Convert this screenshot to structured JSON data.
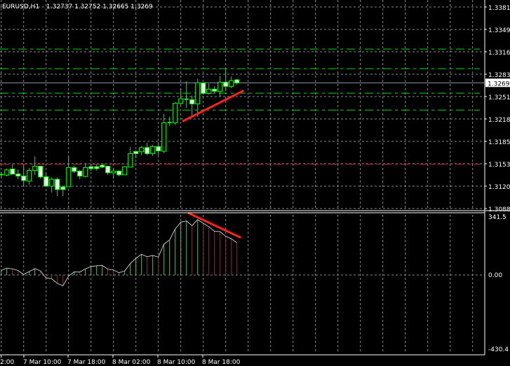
{
  "header": {
    "symbol": "EURUSD,H1",
    "ohlc": "1.32737 1.32752 1.32665 1.3269"
  },
  "colors": {
    "background": "#000000",
    "grid": "#7f8c99",
    "candle_outline": "#00ff00",
    "bear_body": "#ffffff",
    "bull_body": "#000000",
    "level_line": "#00dd00",
    "support_line": "#dd2222",
    "trendline": "#ff2020",
    "bid_line": "#8899aa",
    "hist_up": "#00ff00",
    "hist_down": "#ff0000",
    "indicator_line": "#c0c0c0"
  },
  "chart_data": [
    {
      "type": "candlestick",
      "title": "EURUSD,H1",
      "price_axis_ticks": [
        "1.33810",
        "1.33490",
        "1.33160",
        "1.32830",
        "1.32510",
        "1.32180",
        "1.31850",
        "1.31530",
        "1.31200",
        "1.30880"
      ],
      "current_price_label": "1.32693",
      "ylim": [
        1.3078,
        1.3392
      ],
      "time_labels": [
        "2:00",
        "7 Mar 10:00",
        "7 Mar 18:00",
        "8 Mar 02:00",
        "8 Mar 10:00",
        "8 Mar 18:00"
      ],
      "candles_ohlc": [
        [
          1.3134,
          1.31385,
          1.31299,
          1.3134
        ],
        [
          1.31333,
          1.31429,
          1.31313,
          1.31409
        ],
        [
          1.31422,
          1.31488,
          1.3134,
          1.31347
        ],
        [
          1.3135,
          1.31416,
          1.31271,
          1.31319
        ],
        [
          1.31319,
          1.31478,
          1.31168,
          1.31254
        ],
        [
          1.31244,
          1.31437,
          1.31195,
          1.31402
        ],
        [
          1.31402,
          1.31608,
          1.31333,
          1.31464
        ],
        [
          1.31464,
          1.31464,
          1.31279,
          1.31306
        ],
        [
          1.31309,
          1.3135,
          1.31161,
          1.31171
        ],
        [
          1.31171,
          1.31299,
          1.31075,
          1.31271
        ],
        [
          1.31271,
          1.31299,
          1.31024,
          1.3112
        ],
        [
          1.31158,
          1.31178,
          1.31024,
          1.3112
        ],
        [
          1.31161,
          1.31608,
          1.31161,
          1.31443
        ],
        [
          1.31443,
          1.31471,
          1.31361,
          1.31388
        ],
        [
          1.31392,
          1.31409,
          1.31271,
          1.31319
        ],
        [
          1.31313,
          1.31505,
          1.31299,
          1.31443
        ],
        [
          1.31457,
          1.31488,
          1.31395,
          1.31429
        ],
        [
          1.31457,
          1.31488,
          1.31402,
          1.31429
        ],
        [
          1.31478,
          1.31498,
          1.31437,
          1.3145
        ],
        [
          1.31464,
          1.31471,
          1.3134,
          1.31367
        ],
        [
          1.31367,
          1.31437,
          1.31282,
          1.31392
        ],
        [
          1.31392,
          1.31402,
          1.31316,
          1.31337
        ],
        [
          1.31337,
          1.31464,
          1.31333,
          1.31457
        ],
        [
          1.3145,
          1.31746,
          1.31443,
          1.3165
        ],
        [
          1.31681,
          1.31694,
          1.31581,
          1.3165
        ],
        [
          1.31677,
          1.31763,
          1.31625,
          1.31738
        ],
        [
          1.31738,
          1.31808,
          1.31625,
          1.3165
        ],
        [
          1.3165,
          1.3178,
          1.31615,
          1.31753
        ],
        [
          1.31753,
          1.31815,
          1.31625,
          1.31691
        ],
        [
          1.31684,
          1.32234,
          1.31657,
          1.32104
        ],
        [
          1.32097,
          1.32193,
          1.32055,
          1.32107
        ],
        [
          1.32104,
          1.32406,
          1.32069,
          1.32392
        ],
        [
          1.32389,
          1.32606,
          1.32365,
          1.32458
        ],
        [
          1.32451,
          1.32716,
          1.32324,
          1.32451
        ],
        [
          1.32444,
          1.32503,
          1.32193,
          1.32382
        ],
        [
          1.32382,
          1.32754,
          1.32193,
          1.32692
        ],
        [
          1.32692,
          1.32692,
          1.3252,
          1.32537
        ],
        [
          1.32537,
          1.32681,
          1.3252,
          1.32599
        ],
        [
          1.32599,
          1.32647,
          1.32537,
          1.32568
        ],
        [
          1.32565,
          1.32795,
          1.32485,
          1.32702
        ],
        [
          1.32702,
          1.32898,
          1.32571,
          1.3264
        ],
        [
          1.3264,
          1.32785,
          1.32613,
          1.32723
        ],
        [
          1.32737,
          1.32752,
          1.32665,
          1.32693
        ]
      ],
      "horizontal_levels_green": [
        1.3319,
        1.32901,
        1.3254,
        1.32292
      ],
      "horizontal_level_red": 1.31493,
      "bid_line": 1.32693,
      "trendline": {
        "from": {
          "bar": 32.3,
          "price": 1.32124
        },
        "to": {
          "bar": 43.2,
          "price": 1.32578
        }
      }
    },
    {
      "type": "bar",
      "axis_ticks": [
        "341.5",
        "0.00",
        "-430.4"
      ],
      "ylim": [
        -430.4,
        341.5
      ],
      "values": [
        26,
        39,
        35,
        26,
        3,
        20,
        37,
        23,
        -16,
        -20,
        -46,
        -59,
        -6,
        18,
        17,
        35,
        48,
        52,
        55,
        33,
        29,
        13,
        23,
        65,
        95,
        118,
        104,
        111,
        102,
        176,
        199,
        261,
        300,
        307,
        281,
        314,
        294,
        274,
        248,
        246,
        220,
        206,
        183
      ],
      "trendline": {
        "from": {
          "bar": 33.3,
          "value": 353
        },
        "to": {
          "bar": 42.7,
          "value": 212
        }
      }
    }
  ]
}
